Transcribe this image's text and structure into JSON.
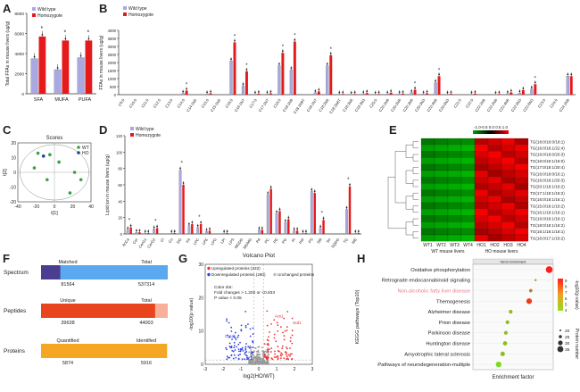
{
  "panels": {
    "A": "A",
    "B": "B",
    "C": "C",
    "D": "D",
    "E": "E",
    "F": "F",
    "G": "G",
    "H": "H"
  },
  "colors": {
    "wt": "#a9a8e2",
    "ho": "#e41a1c",
    "blue_bar": "#5b9bd5",
    "navy": "#4b3d8f",
    "orange": "#f5a623",
    "salmon": "#f7b09a"
  },
  "chart_data": [
    {
      "id": "A",
      "type": "bar",
      "ylabel": "Total FFAs in mouse livers (ug/g)",
      "categories": [
        "SFA",
        "MUFA",
        "PUFA"
      ],
      "ylim": [
        0,
        8000
      ],
      "yticks": [
        "0",
        "2000",
        "4000",
        "6000",
        "8000"
      ],
      "series": [
        {
          "name": "Wild type",
          "values": [
            3500,
            2400,
            3600
          ]
        },
        {
          "name": "Homozygote",
          "values": [
            5700,
            5300,
            5300
          ]
        }
      ],
      "significance": [
        "*",
        "*",
        "*"
      ]
    },
    {
      "id": "B",
      "type": "bar",
      "ylabel": "FFAs in mouse livers (ug/g)",
      "categories": [
        "C6:0",
        "C10:0",
        "C11:0",
        "C12:0",
        "C13:0",
        "C14:0",
        "C14:1N5",
        "C15:0",
        "C15:1N5",
        "C16:0",
        "C16:1N7",
        "C17:0",
        "C17:1N7",
        "C18:0",
        "C18:1N9",
        "C18:1N9T",
        "C18:1N7",
        "C18:2N6",
        "C18:2N6T",
        "C18:3N6",
        "C18:3N3",
        "C20:0",
        "C20:1N9",
        "C20:2N6",
        "C20:3N6",
        "C20:3N3",
        "C20:4N6",
        "C20:5N3",
        "C21:0",
        "C22:0",
        "C22:1N9",
        "C22:2N6",
        "C22:4N6",
        "C22:5N3",
        "C22:6N3",
        "C23:0",
        "C24:0",
        "C24:1N9"
      ],
      "ylim": [
        0,
        4000
      ],
      "yticks": [
        "0",
        "500",
        "1000",
        "1500",
        "2000",
        "2500",
        "3000",
        "3500",
        "4000"
      ],
      "series": [
        {
          "name": "Wild type",
          "values": [
            0,
            0,
            0,
            0,
            0,
            80,
            0,
            40,
            0,
            2100,
            550,
            30,
            40,
            1800,
            1550,
            0,
            120,
            1800,
            30,
            20,
            50,
            20,
            40,
            50,
            120,
            40,
            750,
            30,
            0,
            30,
            0,
            20,
            60,
            100,
            350,
            0,
            0,
            1150
          ]
        },
        {
          "name": "Homozygote",
          "values": [
            0,
            0,
            0,
            0,
            0,
            250,
            0,
            80,
            0,
            3250,
            1450,
            60,
            80,
            2600,
            3300,
            0,
            200,
            2450,
            40,
            40,
            100,
            40,
            120,
            60,
            300,
            80,
            1150,
            50,
            0,
            60,
            0,
            40,
            140,
            280,
            650,
            0,
            0,
            1150
          ]
        }
      ]
    },
    {
      "id": "C",
      "type": "scatter",
      "title": "Scores",
      "xlabel": "t[1]",
      "ylabel": "t[2]",
      "xlim": [
        -40,
        40
      ],
      "ylim": [
        -20,
        20
      ],
      "xticks": [
        "-40",
        "-20",
        "0",
        "20",
        "40"
      ],
      "yticks": [
        "-20",
        "-10",
        "0",
        "10",
        "20"
      ],
      "series": [
        {
          "name": "WT",
          "points": [
            [
              -18,
              13
            ],
            [
              -5,
              12
            ],
            [
              -22,
              3
            ],
            [
              -8,
              -5
            ],
            [
              5,
              7
            ],
            [
              17,
              -14
            ],
            [
              22,
              0
            ],
            [
              29,
              -5
            ]
          ]
        },
        {
          "name": "HO",
          "points": [
            [
              -12,
              11
            ]
          ]
        }
      ]
    },
    {
      "id": "D",
      "type": "bar",
      "ylabel": "Lipid ion in mouse livers (ug/g)",
      "categories": [
        "AcCa",
        "Cer",
        "CerG1",
        "CerG2",
        "Cl",
        "Co",
        "DG",
        "FA",
        "LPC",
        "LPE",
        "LPG",
        "LPI",
        "LPS",
        "MGDG",
        "MGMG",
        "PA",
        "PC",
        "PE",
        "PG",
        "PI",
        "PIP",
        "PS",
        "SM",
        "So",
        "SQDG",
        "TG",
        "WE"
      ],
      "ylim": [
        0,
        120
      ],
      "yticks": [
        "0",
        "20",
        "40",
        "60",
        "80",
        "100",
        "120"
      ],
      "series": [
        {
          "name": "Wild type",
          "values": [
            5,
            2,
            1,
            6,
            0,
            1,
            78,
            10,
            8,
            3,
            0,
            1,
            0,
            0,
            0,
            5,
            48,
            25,
            14,
            4,
            1,
            52,
            7,
            0,
            0,
            30,
            1
          ]
        },
        {
          "name": "Homozygote",
          "values": [
            8,
            2,
            1,
            7,
            0,
            1,
            60,
            12,
            12,
            4,
            0,
            1,
            0,
            0,
            0,
            5,
            55,
            28,
            18,
            4,
            1,
            50,
            17,
            0,
            0,
            58,
            1
          ]
        }
      ]
    },
    {
      "id": "E",
      "type": "heatmap",
      "scale_label": "-1.0-0.5 0.0 0.5 1.0",
      "columns": [
        "WT1",
        "WT2",
        "WT3",
        "WT4",
        "HO1",
        "HO2",
        "HO3",
        "HO4"
      ],
      "group_labels": [
        "WT mouse livers",
        "HO mouse livers"
      ],
      "rows": [
        "TG(18:0/16:0/18:1)",
        "TG(16:0/18:1/22:4)",
        "TG(16:0/18:0/20:3)",
        "TG(16:0/18:1/18:0)",
        "TG(17:0/18:1/20:4)",
        "TG(16:0/18:0/16:1)",
        "TG(16:0/18:1/20:3)",
        "TG(20:1/18:1/18:2)",
        "TG(17:1/18:1/18:2)",
        "TG(16:0/18:1/16:1)",
        "TG(15:0/18:1/18:2)",
        "TG(16:1/18:1/18:1)",
        "TG(16:0/18:1/18:1)",
        "TG(18:0/18:1/18:2)",
        "TG(18:1/18:1/18:1)",
        "TG(16:0/17:1/18:2)"
      ]
    },
    {
      "id": "F",
      "type": "bar",
      "rows": [
        {
          "name": "Spectrum",
          "left_label": "Matched",
          "right_label": "Total",
          "left_value": "81564",
          "right_value": "537314",
          "fraction": 0.152
        },
        {
          "name": "Peptides",
          "left_label": "Unique",
          "right_label": "Total",
          "left_value": "39638",
          "right_value": "44003",
          "fraction": 0.9
        },
        {
          "name": "Proteins",
          "left_label": "Quantified",
          "right_label": "Identified",
          "left_value": "5874",
          "right_value": "5916",
          "fraction": 0.993
        }
      ]
    },
    {
      "id": "G",
      "type": "scatter",
      "title": "Volcano Plot",
      "xlabel": "log2(HO/WT)",
      "ylabel": "-log10(p value)",
      "xlim": [
        -3,
        3
      ],
      "ylim": [
        0,
        30
      ],
      "xticks": [
        "-3",
        "-2",
        "-1",
        "0",
        "1",
        "2",
        "3"
      ],
      "yticks": [
        "0",
        "10",
        "20",
        "30"
      ],
      "legend": [
        "Upregulated proteins (232)",
        "Downregulated proteins (260)",
        "Unchanged proteins"
      ],
      "notes": [
        "Color dot:",
        "Fold changes > 1.200 or <0.833",
        "P value < 0.05"
      ],
      "labels": [
        "Cyp2b",
        "Acs1",
        "Scd1"
      ]
    },
    {
      "id": "H",
      "type": "scatter",
      "title": "KEGG Enrichment",
      "ylabel": "KEGG pathways (Top10)",
      "xlabel": "Enrichment factor",
      "categories": [
        "Oxidative phosphorylation",
        "Retrograde endocannabinoid signaling",
        "Non-alcoholic fatty liver disease",
        "Themogenesis",
        "Alzheimer disease",
        "Prion disease",
        "Parkinson disease",
        "Huntington disease",
        "Amyotrophic lateral sclerosis",
        "Pathways of neurodegeneration-multiple"
      ],
      "enrichment": [
        0.95,
        0.78,
        0.72,
        0.7,
        0.47,
        0.43,
        0.41,
        0.4,
        0.37,
        0.32
      ],
      "pvalue_log": [
        9,
        5,
        6,
        8,
        4,
        4,
        4,
        4,
        4,
        3
      ],
      "counts": [
        35,
        15,
        20,
        30,
        22,
        22,
        22,
        24,
        25,
        30
      ],
      "colorbar_label": "-log10(p value)",
      "colorbar_ticks": [
        "9",
        "8",
        "7",
        "6",
        "5",
        "4"
      ],
      "size_label": "Protein number",
      "size_ticks": [
        "20",
        "25",
        "30",
        "35"
      ]
    }
  ]
}
